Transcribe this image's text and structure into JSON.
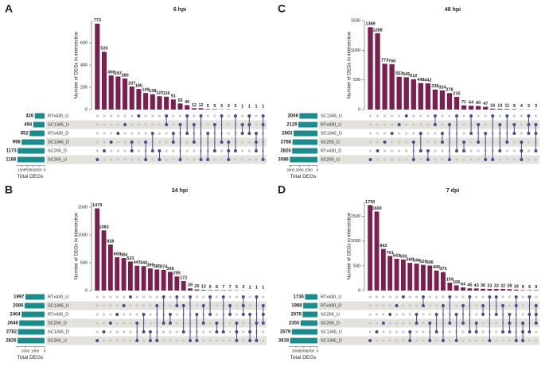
{
  "chart_data": [
    {
      "type": "upset",
      "label": "A",
      "title": "6 hpi",
      "ylabel": "Number of DEGs in intersection",
      "xlabel": "Total DEGs",
      "color": "#7b1f4f",
      "set_color": "#1b8b8b",
      "dot_color": "#4a4a8c",
      "values": [
        773,
        520,
        308,
        297,
        280,
        207,
        185,
        149,
        138,
        120,
        116,
        91,
        55,
        40,
        12,
        12,
        5,
        5,
        3,
        3,
        2,
        1,
        1,
        1,
        1
      ],
      "ylim": [
        0,
        800
      ],
      "yticks": [
        0,
        200,
        400,
        600
      ],
      "memberships": [
        [
          5
        ],
        [
          4
        ],
        [
          3
        ],
        [
          2
        ],
        [
          1
        ],
        [
          3,
          4
        ],
        [
          0
        ],
        [
          3,
          5
        ],
        [
          2,
          4
        ],
        [
          4,
          5
        ],
        [
          0,
          1
        ],
        [
          2,
          3
        ],
        [
          1,
          5
        ],
        [
          0,
          2
        ],
        [
          1,
          3
        ],
        [
          0,
          5
        ],
        [
          2,
          5
        ],
        [
          1,
          4
        ],
        [
          0,
          3
        ],
        [
          3,
          4,
          5
        ],
        [
          0,
          4
        ],
        [
          1,
          2
        ],
        [
          0,
          1,
          2
        ],
        [
          2,
          3,
          4
        ],
        [
          0,
          1,
          5
        ]
      ],
      "sets": {
        "names": [
          "RTx430_U",
          "SC1345_U",
          "RTx430_D",
          "SC1345_D",
          "SC265_D",
          "SC265_U"
        ],
        "values": [
          426,
          494,
          652,
          998,
          1173,
          1186
        ]
      },
      "xlim": [
        0,
        1250
      ],
      "xticks": [
        0,
        250,
        500,
        750,
        1000
      ]
    },
    {
      "type": "upset",
      "label": "B",
      "title": "24 hpi",
      "ylabel": "Number of DEGs in intersection",
      "xlabel": "Total DEGs",
      "color": "#7b1f4f",
      "set_color": "#1b8b8b",
      "dot_color": "#4a4a8c",
      "values": [
        1479,
        1083,
        828,
        600,
        584,
        523,
        447,
        440,
        399,
        380,
        374,
        338,
        255,
        172,
        39,
        20,
        13,
        9,
        8,
        7,
        7,
        5,
        3,
        2,
        1,
        1
      ],
      "ylim": [
        0,
        1600
      ],
      "yticks": [
        0,
        500,
        1000,
        1500
      ],
      "memberships": [
        [
          5
        ],
        [
          4
        ],
        [
          3
        ],
        [
          2
        ],
        [
          1
        ],
        [
          0
        ],
        [
          3,
          5
        ],
        [
          2,
          4
        ],
        [
          4,
          5
        ],
        [
          1,
          5
        ],
        [
          0,
          3
        ],
        [
          2,
          3
        ],
        [
          0,
          1
        ],
        [
          1,
          4
        ],
        [
          0,
          5
        ],
        [
          2,
          5
        ],
        [
          1,
          3
        ],
        [
          0,
          2
        ],
        [
          3,
          4
        ],
        [
          0,
          4
        ],
        [
          1,
          2
        ],
        [
          3,
          4,
          5
        ],
        [
          0,
          1,
          2
        ],
        [
          2,
          4,
          5
        ],
        [
          0,
          3,
          5
        ],
        [
          1,
          2,
          3
        ]
      ],
      "sets": {
        "names": [
          "RTx430_U",
          "SC1345_U",
          "RTx430_D",
          "SC265_D",
          "SC1345_D",
          "SC265_U"
        ],
        "values": [
          1997,
          2086,
          2404,
          2648,
          2782,
          2826
        ]
      },
      "xlim": [
        0,
        3000
      ],
      "xticks": [
        0,
        1000,
        2000
      ]
    },
    {
      "type": "upset",
      "label": "C",
      "title": "48 hpi",
      "ylabel": "Number of DEGs in intersection",
      "xlabel": "Total DEGs",
      "color": "#7b1f4f",
      "set_color": "#1b8b8b",
      "dot_color": "#4a4a8c",
      "values": [
        1389,
        1288,
        773,
        766,
        553,
        545,
        512,
        448,
        442,
        338,
        324,
        278,
        215,
        71,
        64,
        60,
        47,
        16,
        14,
        11,
        9,
        4,
        3,
        3
      ],
      "ylim": [
        0,
        1500
      ],
      "yticks": [
        0,
        500,
        1000,
        1500
      ],
      "memberships": [
        [
          5
        ],
        [
          4
        ],
        [
          3
        ],
        [
          2
        ],
        [
          1
        ],
        [
          0
        ],
        [
          3,
          5
        ],
        [
          2,
          4
        ],
        [
          4,
          5
        ],
        [
          0,
          1
        ],
        [
          2,
          3
        ],
        [
          1,
          5
        ],
        [
          0,
          4
        ],
        [
          3,
          4
        ],
        [
          0,
          2
        ],
        [
          1,
          3
        ],
        [
          2,
          5
        ],
        [
          0,
          5
        ],
        [
          1,
          4
        ],
        [
          0,
          3
        ],
        [
          1,
          2
        ],
        [
          3,
          4,
          5
        ],
        [
          0,
          1,
          2
        ],
        [
          1,
          2,
          4
        ]
      ],
      "sets": {
        "names": [
          "SC1345_U",
          "RTx430_U",
          "SC1345_D",
          "SC265_D",
          "RTx430_D",
          "SC265_U"
        ],
        "values": [
          2006,
          2129,
          2663,
          2788,
          2826,
          3086
        ]
      },
      "xlim": [
        0,
        3200
      ],
      "xticks": [
        0,
        1000,
        2000,
        3000
      ]
    },
    {
      "type": "upset",
      "label": "D",
      "title": "7 dpi",
      "ylabel": "Number of DEGs in intersection",
      "xlabel": "Total DEGs",
      "color": "#7b1f4f",
      "set_color": "#1b8b8b",
      "dot_color": "#4a4a8c",
      "values": [
        1730,
        1600,
        843,
        701,
        643,
        630,
        560,
        546,
        520,
        506,
        406,
        375,
        159,
        106,
        64,
        45,
        43,
        36,
        33,
        33,
        32,
        28,
        19,
        9,
        9,
        9
      ],
      "ylim": [
        0,
        1800
      ],
      "yticks": [
        0,
        500,
        1000,
        1500
      ],
      "memberships": [
        [
          5
        ],
        [
          4
        ],
        [
          3
        ],
        [
          2
        ],
        [
          1
        ],
        [
          0
        ],
        [
          4,
          5
        ],
        [
          2,
          3
        ],
        [
          0,
          1
        ],
        [
          3,
          5
        ],
        [
          2,
          4
        ],
        [
          1,
          5
        ],
        [
          0,
          3
        ],
        [
          2,
          5
        ],
        [
          1,
          3
        ],
        [
          0,
          4
        ],
        [
          3,
          4
        ],
        [
          1,
          2
        ],
        [
          0,
          5
        ],
        [
          0,
          2
        ],
        [
          1,
          4
        ],
        [
          2,
          3,
          4
        ],
        [
          0,
          1,
          5
        ],
        [
          3,
          4,
          5
        ],
        [
          0,
          2,
          4
        ],
        [
          1,
          2,
          3
        ]
      ],
      "sets": {
        "names": [
          "RTx430_U",
          "RTx430_D",
          "SC265_U",
          "SC265_D",
          "SC1345_U",
          "SC1345_D"
        ],
        "values": [
          1736,
          1988,
          2076,
          2355,
          3579,
          3818
        ]
      },
      "xlim": [
        0,
        4000
      ],
      "xticks": [
        0,
        1000,
        2000,
        3000
      ]
    }
  ]
}
